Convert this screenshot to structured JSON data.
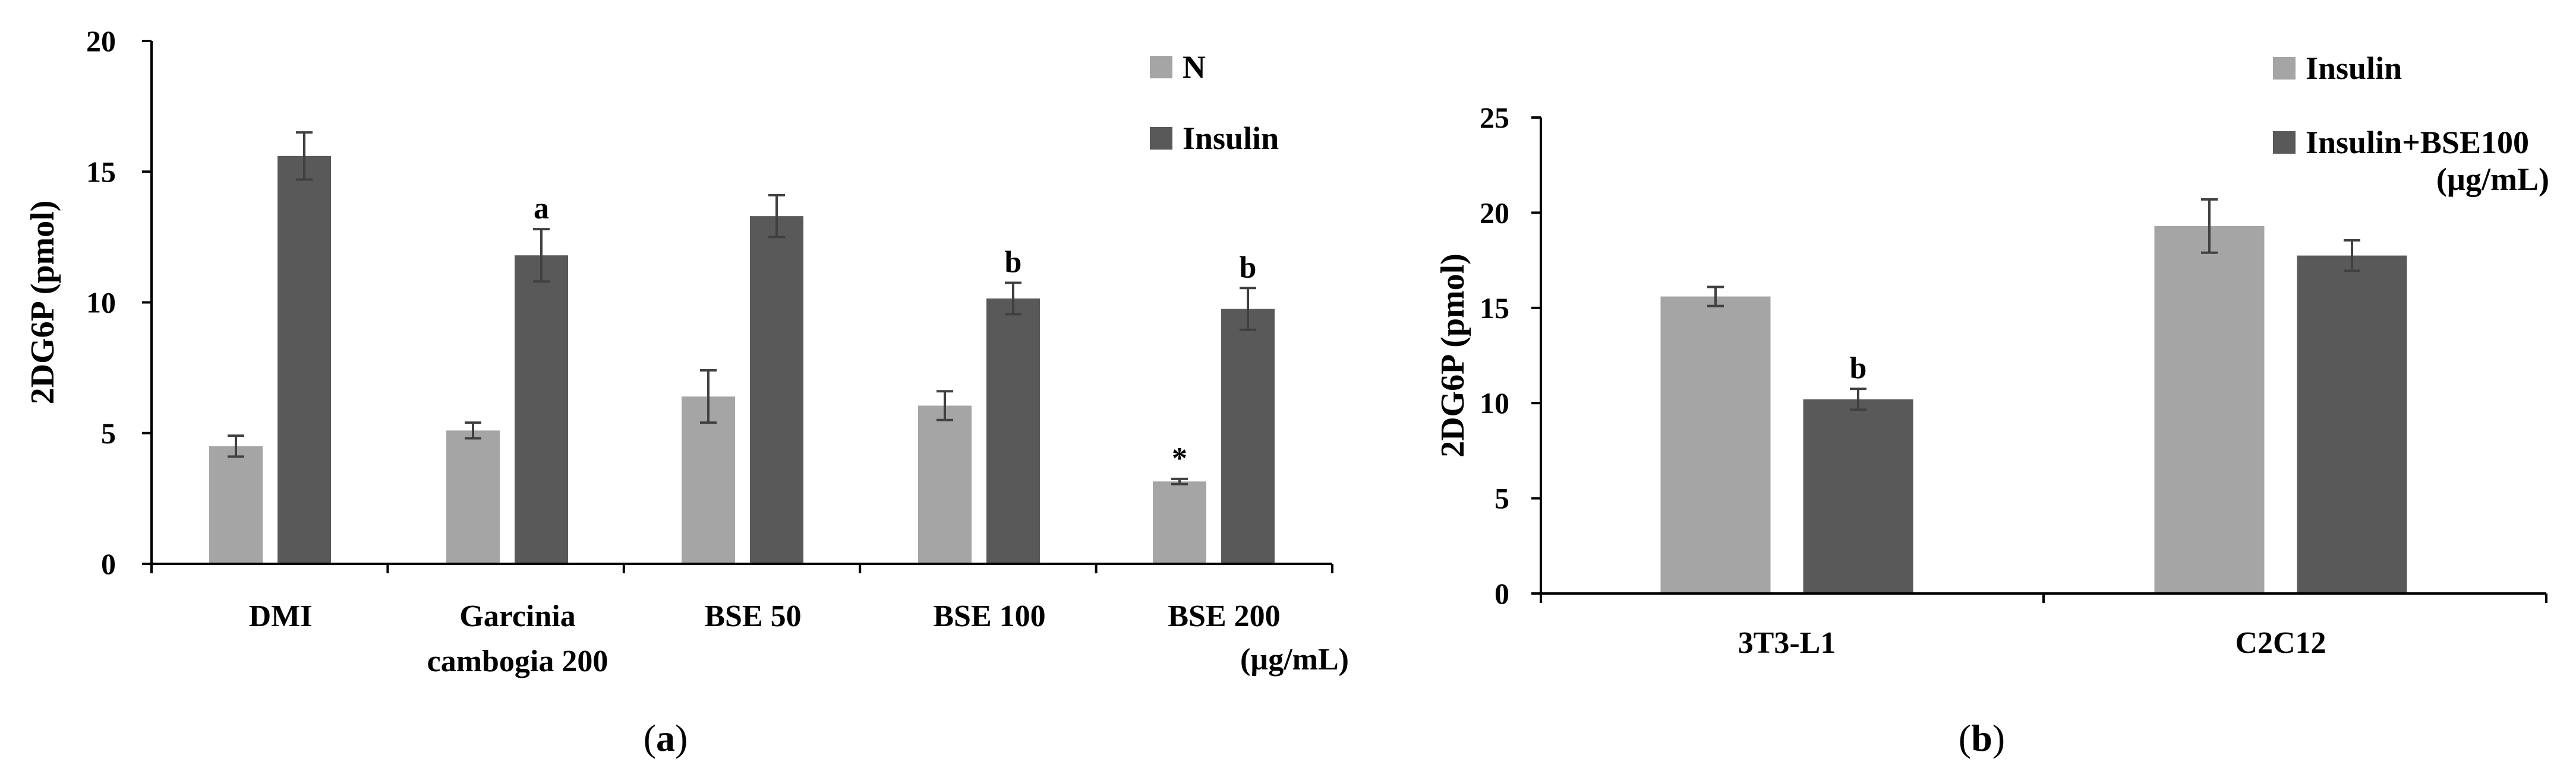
{
  "colors": {
    "light": "#a5a5a5",
    "dark": "#595959",
    "axis": "#000000",
    "error": "#404040"
  },
  "chart_data": [
    {
      "type": "bar",
      "panel_label": "(a)",
      "panel_letter": "a",
      "ylabel": "2DG6P (pmol)",
      "ylim": [
        0,
        20
      ],
      "yticks": [
        0,
        5,
        10,
        15,
        20
      ],
      "categories": [
        [
          "DMI"
        ],
        [
          "Garcinia",
          "cambogia 200"
        ],
        [
          "BSE 50"
        ],
        [
          "BSE 100"
        ],
        [
          "BSE 200"
        ]
      ],
      "unit_note": "(µg/mL)",
      "series": [
        {
          "name": "N",
          "values": [
            4.5,
            5.1,
            6.4,
            6.05,
            3.15
          ],
          "errors": [
            0.4,
            0.3,
            1.0,
            0.55,
            0.1
          ],
          "annotations": [
            "",
            "",
            "",
            "",
            "*"
          ]
        },
        {
          "name": "Insulin",
          "values": [
            15.6,
            11.8,
            13.3,
            10.15,
            9.75
          ],
          "errors": [
            0.9,
            1.0,
            0.8,
            0.6,
            0.8
          ],
          "annotations": [
            "",
            "a",
            "",
            "b",
            "b"
          ]
        }
      ],
      "legend": "top-right"
    },
    {
      "type": "bar",
      "panel_label": "(b)",
      "panel_letter": "b",
      "ylabel": "2DG6P (pmol)",
      "ylim": [
        0,
        25
      ],
      "yticks": [
        0,
        5,
        10,
        15,
        20,
        25
      ],
      "categories": [
        [
          "3T3-L1"
        ],
        [
          "C2C12"
        ]
      ],
      "series": [
        {
          "name": "Insulin",
          "values": [
            15.6,
            19.3
          ],
          "errors": [
            0.5,
            1.4
          ],
          "annotations": [
            "",
            ""
          ]
        },
        {
          "name": "Insulin+BSE100",
          "name_line2": "(µg/mL)",
          "values": [
            10.2,
            17.75
          ],
          "errors": [
            0.55,
            0.8
          ],
          "annotations": [
            "b",
            ""
          ]
        }
      ],
      "legend": "top-right"
    }
  ]
}
